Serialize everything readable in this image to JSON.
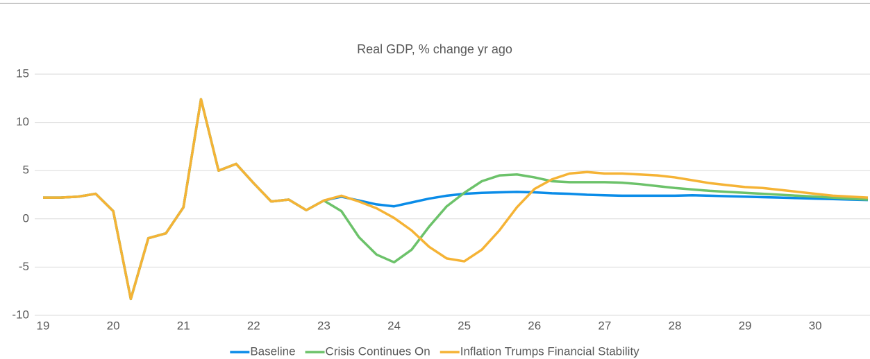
{
  "chart_data": {
    "type": "line",
    "title": "Real GDP, % change yr ago",
    "x": [
      19,
      19.25,
      19.5,
      19.75,
      20,
      20.25,
      20.5,
      20.75,
      21,
      21.25,
      21.5,
      21.75,
      22,
      22.25,
      22.5,
      22.75,
      23,
      23.25,
      23.5,
      23.75,
      24,
      24.25,
      24.5,
      24.75,
      25,
      25.25,
      25.5,
      25.75,
      26,
      26.25,
      26.5,
      26.75,
      27,
      27.25,
      27.5,
      27.75,
      28,
      28.25,
      28.5,
      28.75,
      29,
      29.25,
      29.5,
      29.75,
      30,
      30.25,
      30.5,
      30.75
    ],
    "series": [
      {
        "name": "Baseline",
        "color": "#0a8ce8",
        "values": [
          2.2,
          2.2,
          2.3,
          2.6,
          0.8,
          -8.3,
          -2.0,
          -1.5,
          1.2,
          12.4,
          5.0,
          5.7,
          3.7,
          1.8,
          2.0,
          0.9,
          1.9,
          2.3,
          1.9,
          1.5,
          1.3,
          1.7,
          2.1,
          2.4,
          2.6,
          2.7,
          2.75,
          2.8,
          2.75,
          2.65,
          2.6,
          2.5,
          2.45,
          2.4,
          2.4,
          2.4,
          2.4,
          2.45,
          2.4,
          2.35,
          2.3,
          2.25,
          2.2,
          2.15,
          2.1,
          2.05,
          2.0,
          1.95
        ]
      },
      {
        "name": "Crisis Continues On",
        "color": "#6cc26a",
        "values": [
          2.2,
          2.2,
          2.3,
          2.6,
          0.8,
          -8.3,
          -2.0,
          -1.5,
          1.2,
          12.4,
          5.0,
          5.7,
          3.7,
          1.8,
          2.0,
          0.9,
          1.9,
          0.8,
          -1.9,
          -3.7,
          -4.5,
          -3.2,
          -0.8,
          1.3,
          2.7,
          3.9,
          4.5,
          4.6,
          4.3,
          3.9,
          3.8,
          3.8,
          3.8,
          3.75,
          3.6,
          3.4,
          3.2,
          3.05,
          2.9,
          2.8,
          2.7,
          2.6,
          2.5,
          2.4,
          2.3,
          2.2,
          2.1,
          2.0
        ]
      },
      {
        "name": "Inflation Trumps Financial Stability",
        "color": "#f5b335",
        "values": [
          2.2,
          2.2,
          2.3,
          2.6,
          0.8,
          -8.3,
          -2.0,
          -1.5,
          1.2,
          12.4,
          5.0,
          5.7,
          3.7,
          1.8,
          2.0,
          0.9,
          1.9,
          2.4,
          1.8,
          1.1,
          0.1,
          -1.2,
          -2.9,
          -4.1,
          -4.4,
          -3.2,
          -1.2,
          1.2,
          3.1,
          4.1,
          4.7,
          4.85,
          4.7,
          4.7,
          4.6,
          4.5,
          4.3,
          4.0,
          3.7,
          3.5,
          3.3,
          3.2,
          3.0,
          2.8,
          2.6,
          2.4,
          2.3,
          2.2
        ]
      }
    ],
    "xlim": [
      19,
      30.75
    ],
    "xticks": [
      19,
      20,
      21,
      22,
      23,
      24,
      25,
      26,
      27,
      28,
      29,
      30
    ],
    "ylim": [
      -10,
      15
    ],
    "yticks": [
      -10,
      -5,
      0,
      5,
      10,
      15
    ],
    "grid": true,
    "legend": "bottom"
  }
}
